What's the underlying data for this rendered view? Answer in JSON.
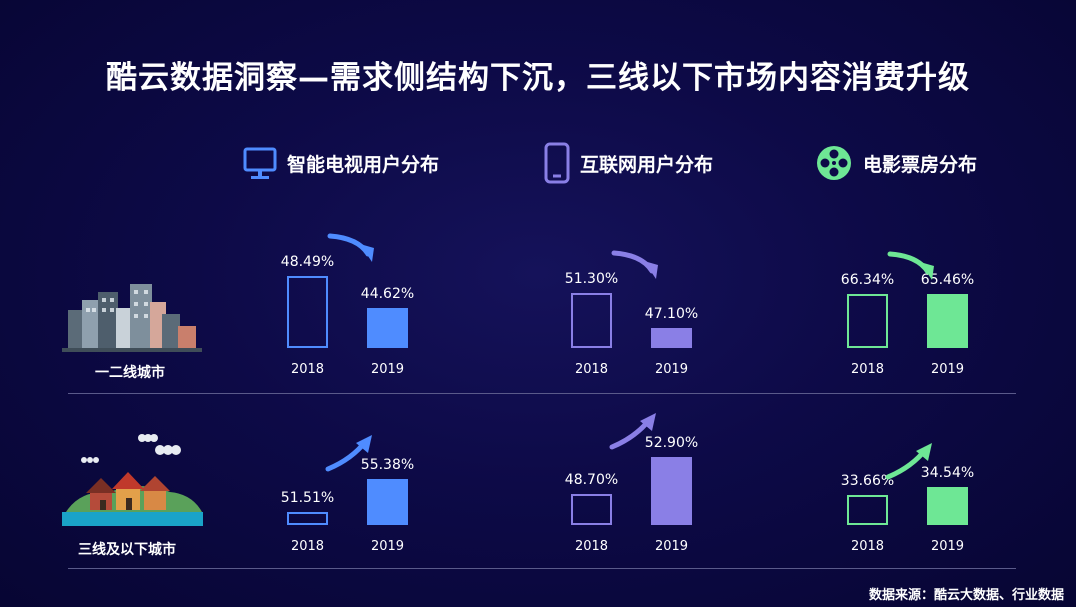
{
  "title": "酷云数据洞察—需求侧结构下沉，三线以下市场内容消费升级",
  "source": "数据来源：酷云大数据、行业数据",
  "headers": [
    {
      "label": "智能电视用户分布",
      "icon": "tv-icon",
      "color": "#4f8cff"
    },
    {
      "label": "互联网用户分布",
      "icon": "phone-icon",
      "color": "#8a7fe6"
    },
    {
      "label": "电影票房分布",
      "icon": "film-reel-icon",
      "color": "#6ee795"
    }
  ],
  "rows": [
    {
      "label": "一二线城市",
      "icon": "city-buildings-icon"
    },
    {
      "label": "三线及以下城市",
      "icon": "small-town-houses-icon"
    }
  ],
  "chart_data": {
    "type": "bar",
    "categories": [
      "2018",
      "2019"
    ],
    "panels": [
      {
        "group": "智能电视用户分布",
        "row": "一二线城市",
        "values": [
          48.49,
          44.62
        ],
        "labels": [
          "48.49%",
          "44.62%"
        ],
        "trend": "down"
      },
      {
        "group": "互联网用户分布",
        "row": "一二线城市",
        "values": [
          51.3,
          47.1
        ],
        "labels": [
          "51.30%",
          "47.10%"
        ],
        "trend": "down"
      },
      {
        "group": "电影票房分布",
        "row": "一二线城市",
        "values": [
          66.34,
          65.46
        ],
        "labels": [
          "66.34%",
          "65.46%"
        ],
        "trend": "down"
      },
      {
        "group": "智能电视用户分布",
        "row": "三线及以下城市",
        "values": [
          51.51,
          55.38
        ],
        "labels": [
          "51.51%",
          "55.38%"
        ],
        "trend": "up"
      },
      {
        "group": "互联网用户分布",
        "row": "三线及以下城市",
        "values": [
          48.7,
          52.9
        ],
        "labels": [
          "48.70%",
          "52.90%"
        ],
        "trend": "up"
      },
      {
        "group": "电影票房分布",
        "row": "三线及以下城市",
        "values": [
          33.66,
          34.54
        ],
        "labels": [
          "33.66%",
          "34.54%"
        ],
        "trend": "up"
      }
    ]
  }
}
